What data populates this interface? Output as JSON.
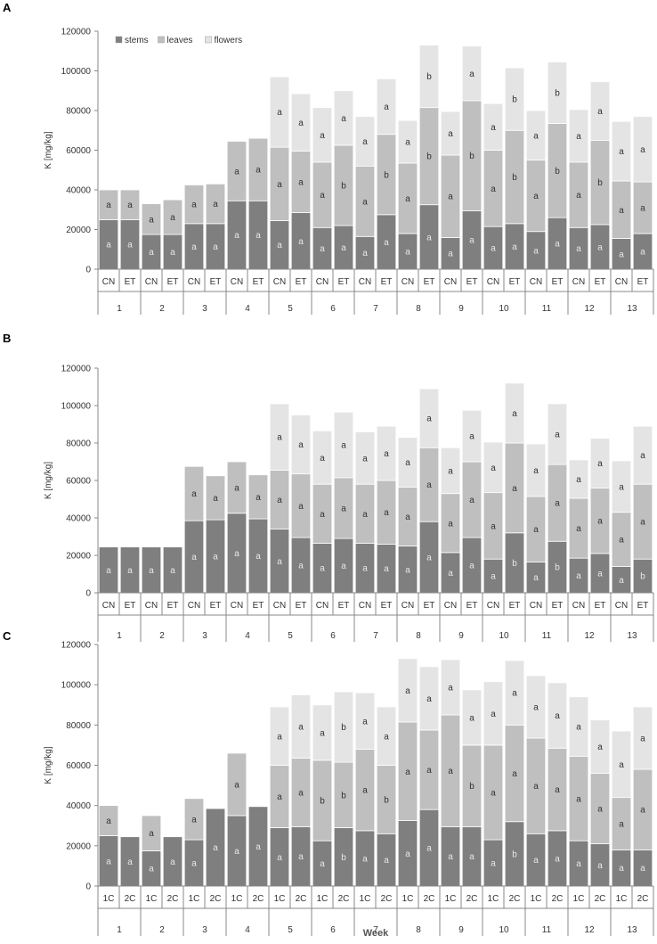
{
  "chart_data": [
    {
      "panel_label": "A",
      "type": "bar",
      "stacked": true,
      "title": "",
      "ylabel": "K [mg/kg]",
      "xlabel": "",
      "ylim": [
        0,
        120000
      ],
      "yticks": [
        0,
        20000,
        40000,
        60000,
        80000,
        100000,
        120000
      ],
      "legend": [
        "stems",
        "leaves",
        "flowers"
      ],
      "legend_position": "top-left",
      "weeks": [
        "1",
        "2",
        "3",
        "4",
        "5",
        "6",
        "7",
        "8",
        "9",
        "10",
        "11",
        "12",
        "13"
      ],
      "treatments": [
        "CN",
        "ET"
      ],
      "series": [
        {
          "name": "stems",
          "values": [
            25000,
            25000,
            17500,
            17500,
            23000,
            23000,
            34500,
            34500,
            24500,
            28500,
            21000,
            22000,
            16500,
            27500,
            18000,
            32500,
            16000,
            29500,
            21500,
            23000,
            19000,
            26000,
            21000,
            22500,
            15500,
            18000
          ],
          "labels": [
            "a",
            "a",
            "a",
            "a",
            "a",
            "a",
            "a",
            "a",
            "a",
            "a",
            "a",
            "a",
            "a",
            "a",
            "a",
            "a",
            "a",
            "a",
            "a",
            "a",
            "a",
            "a",
            "a",
            "a",
            "a",
            "a"
          ]
        },
        {
          "name": "leaves",
          "values": [
            15000,
            15000,
            15500,
            17500,
            19500,
            20000,
            30000,
            31500,
            37000,
            31000,
            33000,
            40500,
            35500,
            40500,
            35500,
            49000,
            41500,
            55500,
            38500,
            47000,
            36000,
            47500,
            33000,
            42500,
            29000,
            26000
          ],
          "labels": [
            "a",
            "a",
            "a",
            "a",
            "a",
            "a",
            "a",
            "a",
            "a",
            "a",
            "a",
            "b",
            "a",
            "b",
            "a",
            "b",
            "a",
            "b",
            "a",
            "b",
            "a",
            "b",
            "a",
            "b",
            "a",
            "a"
          ]
        },
        {
          "name": "flowers",
          "values": [
            0,
            0,
            0,
            0,
            0,
            0,
            0,
            0,
            35500,
            29000,
            27500,
            27500,
            25000,
            28000,
            21500,
            31500,
            22000,
            27500,
            23500,
            31500,
            25000,
            31000,
            26500,
            29500,
            30000,
            33000
          ],
          "labels": [
            "",
            "",
            "",
            "",
            "",
            "",
            "",
            "",
            "a",
            "a",
            "a",
            "a",
            "a",
            "a",
            "a",
            "b",
            "a",
            "a",
            "a",
            "b",
            "a",
            "b",
            "a",
            "a",
            "a",
            "a"
          ]
        }
      ]
    },
    {
      "panel_label": "B",
      "type": "bar",
      "stacked": true,
      "title": "",
      "ylabel": "K [mg/kg]",
      "xlabel": "",
      "ylim": [
        0,
        120000
      ],
      "yticks": [
        0,
        20000,
        40000,
        60000,
        80000,
        100000,
        120000
      ],
      "legend": [],
      "weeks": [
        "1",
        "2",
        "3",
        "4",
        "5",
        "6",
        "7",
        "8",
        "9",
        "10",
        "11",
        "12",
        "13"
      ],
      "treatments": [
        "CN",
        "ET"
      ],
      "series": [
        {
          "name": "stems",
          "values": [
            24500,
            24500,
            24500,
            24500,
            38500,
            39000,
            42500,
            39500,
            34000,
            29500,
            26500,
            29000,
            26500,
            26000,
            25000,
            38000,
            21500,
            29500,
            18000,
            32000,
            16500,
            27500,
            18500,
            21000,
            14000,
            18000
          ],
          "labels": [
            "a",
            "a",
            "a",
            "a",
            "a",
            "a",
            "a",
            "a",
            "a",
            "a",
            "a",
            "a",
            "a",
            "a",
            "a",
            "a",
            "a",
            "a",
            "a",
            "b",
            "a",
            "b",
            "a",
            "a",
            "a",
            "b"
          ]
        },
        {
          "name": "leaves",
          "values": [
            0,
            0,
            0,
            0,
            29000,
            23500,
            27500,
            23500,
            31500,
            34000,
            31500,
            32500,
            31500,
            34000,
            31500,
            39500,
            31500,
            40500,
            35500,
            48000,
            35000,
            41000,
            32000,
            35000,
            29000,
            40000
          ],
          "labels": [
            "",
            "",
            "",
            "",
            "a",
            "a",
            "a",
            "a",
            "a",
            "a",
            "a",
            "a",
            "a",
            "a",
            "a",
            "a",
            "a",
            "a",
            "a",
            "a",
            "a",
            "a",
            "a",
            "a",
            "a",
            "a"
          ]
        },
        {
          "name": "flowers",
          "values": [
            0,
            0,
            0,
            0,
            0,
            0,
            0,
            0,
            35500,
            31500,
            28500,
            35000,
            28000,
            29000,
            26500,
            31500,
            24500,
            27500,
            27000,
            32000,
            28000,
            32500,
            20500,
            26500,
            27500,
            31000
          ],
          "labels": [
            "",
            "",
            "",
            "",
            "",
            "",
            "",
            "",
            "a",
            "a",
            "a",
            "a",
            "a",
            "a",
            "a",
            "a",
            "a",
            "a",
            "a",
            "a",
            "a",
            "a",
            "a",
            "a",
            "a",
            "a"
          ]
        }
      ]
    },
    {
      "panel_label": "C",
      "type": "bar",
      "stacked": true,
      "title": "",
      "ylabel": "K [mg/kg]",
      "xlabel": "Week",
      "ylim": [
        0,
        120000
      ],
      "yticks": [
        0,
        20000,
        40000,
        60000,
        80000,
        100000,
        120000
      ],
      "legend": [],
      "weeks": [
        "1",
        "2",
        "3",
        "4",
        "5",
        "6",
        "7",
        "8",
        "9",
        "10",
        "11",
        "12",
        "13"
      ],
      "treatments": [
        "1C",
        "2C"
      ],
      "series": [
        {
          "name": "stems",
          "values": [
            25000,
            24500,
            17500,
            24500,
            23000,
            38500,
            35000,
            39500,
            29000,
            29500,
            22500,
            29000,
            27500,
            26000,
            32500,
            38000,
            29500,
            29500,
            23000,
            32000,
            26000,
            27500,
            22500,
            21000,
            18000,
            18000
          ],
          "labels": [
            "a",
            "a",
            "a",
            "a",
            "a",
            "a",
            "a",
            "a",
            "a",
            "a",
            "a",
            "b",
            "a",
            "a",
            "a",
            "a",
            "a",
            "a",
            "a",
            "b",
            "a",
            "a",
            "a",
            "a",
            "a",
            "a"
          ]
        },
        {
          "name": "leaves",
          "values": [
            15000,
            0,
            17500,
            0,
            20500,
            0,
            31000,
            0,
            31000,
            34000,
            40000,
            32500,
            40500,
            34000,
            49000,
            39500,
            55500,
            40500,
            47000,
            48000,
            47500,
            41000,
            42000,
            35000,
            26000,
            40000
          ],
          "labels": [
            "a",
            "",
            "a",
            "",
            "a",
            "",
            "a",
            "",
            "a",
            "a",
            "b",
            "b",
            "a",
            "b",
            "a",
            "a",
            "a",
            "b",
            "a",
            "a",
            "a",
            "a",
            "a",
            "a",
            "a",
            "a"
          ]
        },
        {
          "name": "flowers",
          "values": [
            0,
            0,
            0,
            0,
            0,
            0,
            0,
            0,
            29000,
            31500,
            27500,
            35000,
            28000,
            29000,
            31500,
            31500,
            27500,
            27500,
            31500,
            32000,
            31000,
            32500,
            29500,
            26500,
            33000,
            31000
          ],
          "labels": [
            "",
            "",
            "",
            "",
            "",
            "",
            "",
            "",
            "a",
            "a",
            "a",
            "b",
            "a",
            "a",
            "a",
            "a",
            "a",
            "a",
            "a",
            "a",
            "a",
            "a",
            "a",
            "a",
            "a",
            "a"
          ]
        }
      ]
    }
  ]
}
